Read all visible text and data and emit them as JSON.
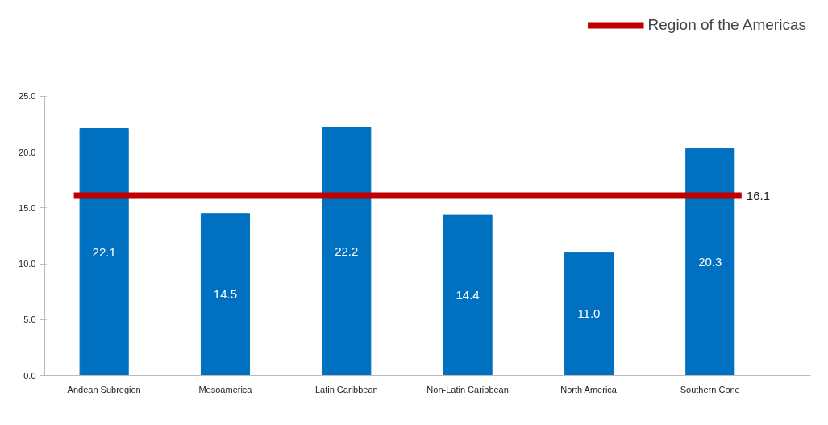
{
  "chart_data": {
    "type": "bar",
    "categories": [
      "Andean Subregion",
      "Mesoamerica",
      "Latin Caribbean",
      "Non-Latin Caribbean",
      "North America",
      "Southern Cone"
    ],
    "values": [
      22.1,
      14.5,
      22.2,
      14.4,
      11.0,
      20.3
    ],
    "value_labels": [
      "22.1",
      "14.5",
      "22.2",
      "14.4",
      "11.0",
      "20.3"
    ],
    "color": "#0070c0",
    "ylim": [
      0,
      25
    ],
    "yticks": [
      {
        "value": 0,
        "label": "0.0"
      },
      {
        "value": 5,
        "label": "5.0"
      },
      {
        "value": 10,
        "label": "10.0"
      },
      {
        "value": 15,
        "label": "15.0"
      },
      {
        "value": 20,
        "label": "20.0"
      },
      {
        "value": 25,
        "label": "25.0"
      }
    ],
    "ref_lines": [
      {
        "axis": "y",
        "value": 16.1,
        "label": "16.1",
        "color": "#c00000"
      }
    ],
    "annotations": [
      "Region of the Americas"
    ],
    "legend": "top right"
  }
}
